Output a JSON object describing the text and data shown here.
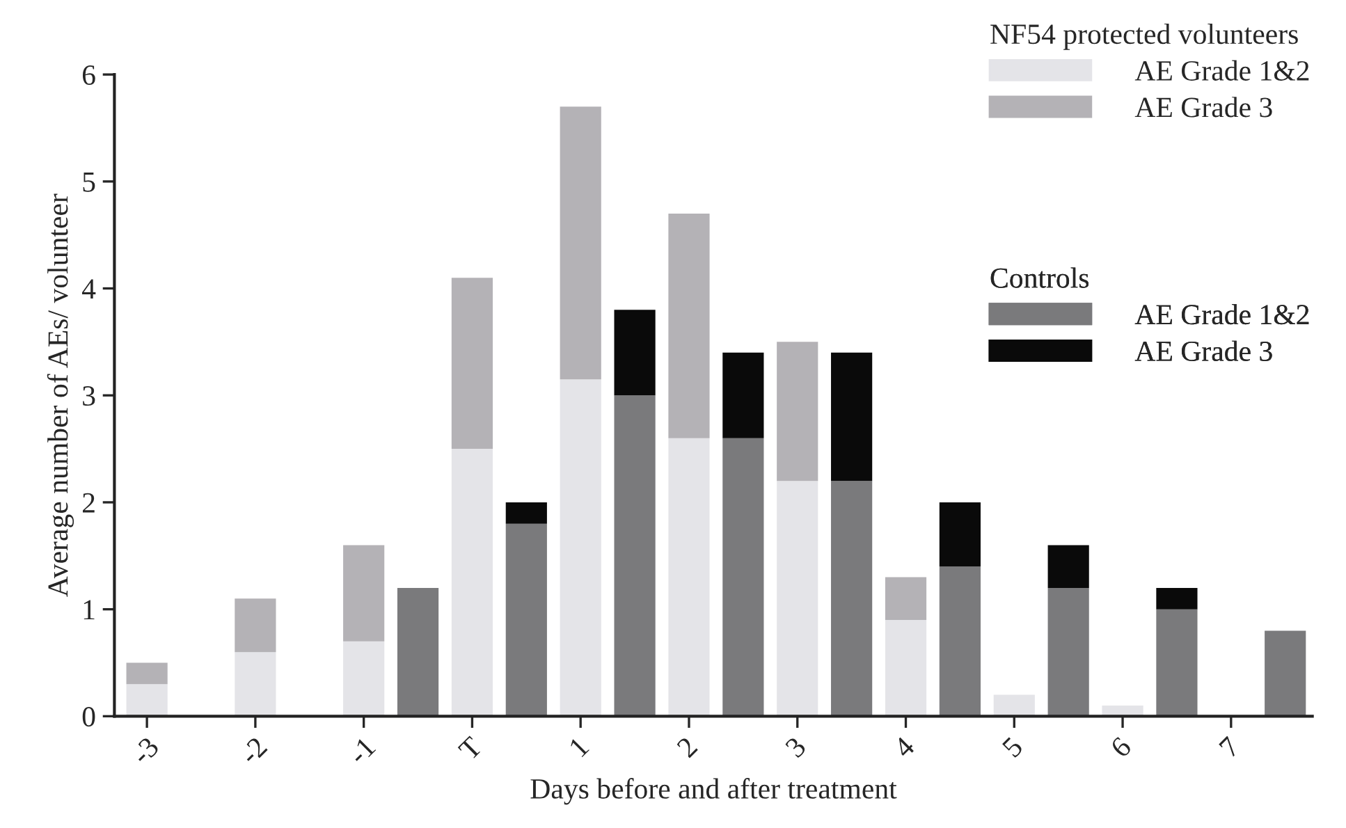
{
  "chart_data": {
    "type": "bar",
    "stacked": true,
    "xlabel": "Days before and after treatment",
    "ylabel": "Average number of AEs/ volunteer",
    "legend_title": "NF54 protected volunteers",
    "annotations": [
      "Controls"
    ],
    "categories": [
      "-3",
      null,
      "-2",
      null,
      "-1",
      null,
      "T",
      null,
      "1",
      null,
      "2",
      null,
      "3",
      null,
      "4",
      null,
      "5",
      null,
      "6",
      null,
      "7",
      null
    ],
    "ylim": [
      0,
      6
    ],
    "yticks": [
      0,
      1,
      2,
      3,
      4,
      5,
      6
    ],
    "legend": "top right",
    "series": [
      {
        "name": "AE Grade 1&2",
        "color": "#e4e4e8",
        "values": [
          0.3,
          null,
          0.6,
          null,
          0.7,
          null,
          2.5,
          null,
          3.15,
          null,
          2.6,
          null,
          2.2,
          null,
          0.9,
          null,
          0.2,
          null,
          0.1,
          null,
          0,
          null
        ]
      },
      {
        "name": "AE Grade 3",
        "color": "#b4b2b6",
        "values": [
          0.2,
          null,
          0.5,
          null,
          0.9,
          null,
          1.6,
          null,
          2.55,
          null,
          2.1,
          null,
          1.3,
          null,
          0.4,
          null,
          0,
          null,
          0,
          null,
          0,
          null
        ]
      },
      {
        "name": "AE Grade 1&2",
        "color": "#7a7a7c",
        "values": [
          null,
          0,
          null,
          0,
          null,
          1.2,
          null,
          1.8,
          null,
          3.0,
          null,
          2.6,
          null,
          2.2,
          null,
          1.4,
          null,
          1.2,
          null,
          1.0,
          null,
          0.8
        ]
      },
      {
        "name": "AE Grade 3",
        "color": "#0a0a0a",
        "values": [
          null,
          0,
          null,
          0,
          null,
          0,
          null,
          0.2,
          null,
          0.8,
          null,
          0.8,
          null,
          1.2,
          null,
          0.6,
          null,
          0.4,
          null,
          0.2,
          null,
          0
        ]
      }
    ]
  }
}
